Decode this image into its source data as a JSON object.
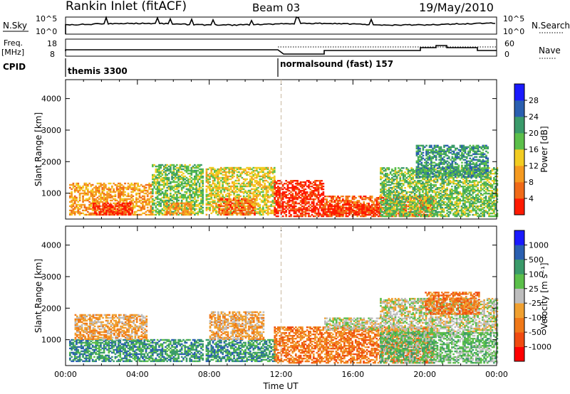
{
  "header": {
    "title": "Rankin Inlet (fitACF)",
    "beam": "Beam 03",
    "date": "19/May/2010"
  },
  "status_panel": {
    "left_label": "N.Sky",
    "left_ticks": [
      "10^5",
      "10^0"
    ],
    "right_label": "N.Search",
    "right_ticks": [
      "10^5",
      "10^0"
    ]
  },
  "freq_panel": {
    "left_label_1": "Freq.",
    "left_label_2": "[MHz]",
    "left_ticks": [
      "18",
      "8"
    ],
    "right_label": "Nave",
    "right_ticks": [
      "60",
      "0"
    ]
  },
  "cpid": {
    "label": "CPID",
    "mode_1": "themis 3300",
    "mode_2": "normalsound (fast) 157"
  },
  "colors": {
    "power_scale": [
      "#1a1aff",
      "#2a5fb0",
      "#3a9a6a",
      "#5bbf4a",
      "#f2cc22",
      "#f59a20",
      "#f06a18",
      "#ff1a00"
    ],
    "velocity_scale": [
      "#1a1aff",
      "#2a5fb0",
      "#3a9a6a",
      "#5bbf4a",
      "#bdbdbd",
      "#f0a030",
      "#f07818",
      "#f04a10",
      "#ff0000"
    ]
  },
  "chart_data": [
    {
      "type": "heatmap",
      "panel": "power",
      "xlabel": "",
      "ylabel": "Slant Range [km]",
      "x_ticks": [
        "00:00",
        "04:00",
        "08:00",
        "12:00",
        "16:00",
        "20:00",
        "00:00"
      ],
      "y_ticks": [
        1000,
        2000,
        3000,
        4000
      ],
      "xlim_hours": [
        0,
        24
      ],
      "ylim_km": [
        180,
        4600
      ],
      "colorbar_label": "Power [dB]",
      "colorbar_ticks": [
        4,
        8,
        12,
        16,
        20,
        24,
        28
      ],
      "echo_regions": [
        {
          "t0": 0.2,
          "t1": 4.8,
          "r0": 300,
          "r1": 1300,
          "level": 5
        },
        {
          "t0": 1.5,
          "t1": 3.7,
          "r0": 300,
          "r1": 700,
          "level": 7
        },
        {
          "t0": 4.8,
          "t1": 7.6,
          "r0": 300,
          "r1": 1900,
          "level": 3
        },
        {
          "t0": 5.5,
          "t1": 7.0,
          "r0": 300,
          "r1": 700,
          "level": 5
        },
        {
          "t0": 7.8,
          "t1": 11.6,
          "r0": 300,
          "r1": 1800,
          "level": 4
        },
        {
          "t0": 8.5,
          "t1": 10.5,
          "r0": 300,
          "r1": 800,
          "level": 6
        },
        {
          "t0": 11.6,
          "t1": 14.3,
          "r0": 250,
          "r1": 1400,
          "level": 7
        },
        {
          "t0": 14.4,
          "t1": 20.5,
          "r0": 250,
          "r1": 900,
          "level": 6
        },
        {
          "t0": 14.4,
          "t1": 17.5,
          "r0": 300,
          "r1": 650,
          "level": 7
        },
        {
          "t0": 17.5,
          "t1": 24,
          "r0": 250,
          "r1": 1800,
          "level": 3
        },
        {
          "t0": 19.5,
          "t1": 23.5,
          "r0": 1500,
          "r1": 2500,
          "level": 2
        }
      ]
    },
    {
      "type": "heatmap",
      "panel": "velocity",
      "xlabel": "Time UT",
      "ylabel": "Slant Range [km]",
      "x_ticks": [
        "00:00",
        "04:00",
        "08:00",
        "12:00",
        "16:00",
        "20:00",
        "00:00"
      ],
      "y_ticks": [
        1000,
        2000,
        3000,
        4000
      ],
      "xlim_hours": [
        0,
        24
      ],
      "ylim_km": [
        180,
        4600
      ],
      "colorbar_label": "Velocity [m s⁻¹]",
      "colorbar_ticks": [
        1000,
        500,
        100,
        25,
        -25,
        -100,
        -500,
        -1000
      ],
      "echo_regions": [
        {
          "t0": 0.2,
          "t1": 4.8,
          "r0": 300,
          "r1": 1000,
          "level": 2
        },
        {
          "t0": 0.5,
          "t1": 4.5,
          "r0": 1000,
          "r1": 1800,
          "level": 5
        },
        {
          "t0": 4.8,
          "t1": 7.6,
          "r0": 300,
          "r1": 1000,
          "level": 2
        },
        {
          "t0": 7.8,
          "t1": 11.6,
          "r0": 300,
          "r1": 1000,
          "level": 2
        },
        {
          "t0": 8.0,
          "t1": 11.0,
          "r0": 1000,
          "r1": 1900,
          "level": 5
        },
        {
          "t0": 11.6,
          "t1": 20.5,
          "r0": 250,
          "r1": 1400,
          "level": 6
        },
        {
          "t0": 14.4,
          "t1": 17.5,
          "r0": 1300,
          "r1": 1700,
          "level": 4
        },
        {
          "t0": 17.5,
          "t1": 24,
          "r0": 1200,
          "r1": 2300,
          "level": 4
        },
        {
          "t0": 20.0,
          "t1": 23.0,
          "r0": 1800,
          "r1": 2500,
          "level": 6
        },
        {
          "t0": 17.5,
          "t1": 24,
          "r0": 250,
          "r1": 1200,
          "level": 3
        }
      ]
    }
  ]
}
